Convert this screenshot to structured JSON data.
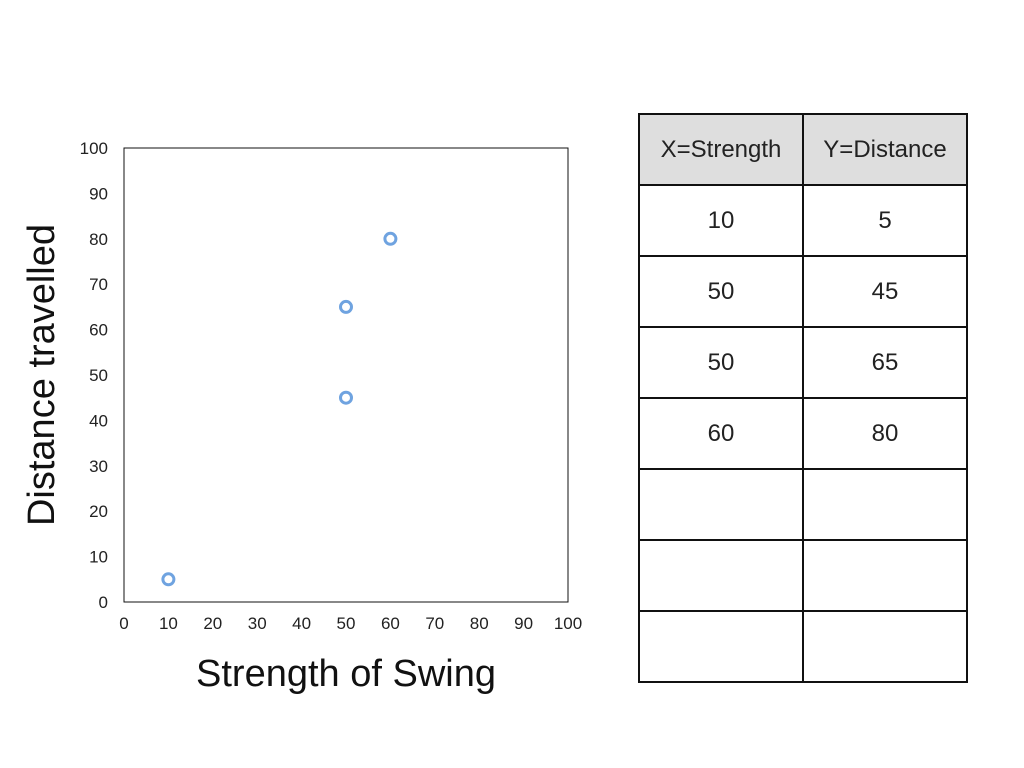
{
  "chart_data": {
    "type": "scatter",
    "title": "",
    "xlabel": "Strength of Swing",
    "ylabel": "Distance travelled",
    "xlim": [
      0,
      100
    ],
    "ylim": [
      0,
      100
    ],
    "xticks": [
      "0",
      "10",
      "20",
      "30",
      "40",
      "50",
      "60",
      "70",
      "80",
      "90",
      "100"
    ],
    "yticks": [
      "0",
      "10",
      "20",
      "30",
      "40",
      "50",
      "60",
      "70",
      "80",
      "90",
      "100"
    ],
    "grid": false,
    "marker_color": "#6fa3e0",
    "points": [
      {
        "x": 10,
        "y": 5
      },
      {
        "x": 50,
        "y": 45
      },
      {
        "x": 50,
        "y": 65
      },
      {
        "x": 60,
        "y": 80
      }
    ]
  },
  "table": {
    "headers": [
      "X=Strength",
      "Y=Distance"
    ],
    "rows": [
      [
        "10",
        "5"
      ],
      [
        "50",
        "45"
      ],
      [
        "50",
        "65"
      ],
      [
        "60",
        "80"
      ],
      [
        "",
        ""
      ],
      [
        "",
        ""
      ],
      [
        "",
        ""
      ]
    ]
  }
}
